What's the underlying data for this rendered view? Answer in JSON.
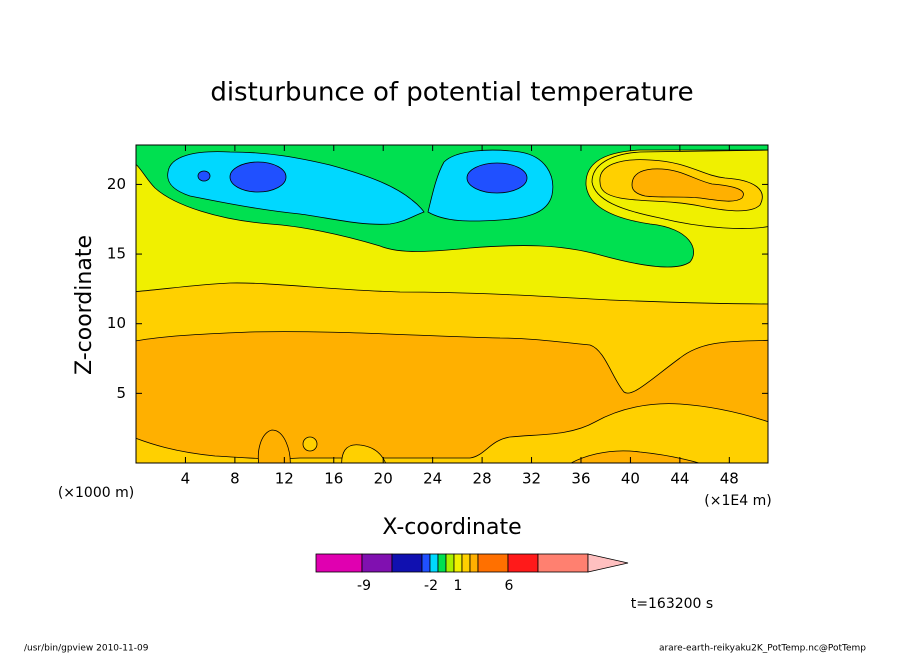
{
  "chart_data": {
    "type": "contour",
    "title": "disturbunce of potential temperature",
    "xlabel": "X-coordinate",
    "ylabel": "Z-coordinate",
    "x_unit": "(×1E4 m)",
    "y_unit": "(×1000 m)",
    "xlim": [
      0,
      51.13
    ],
    "ylim": [
      0,
      22.83
    ],
    "xticks": [
      4,
      8,
      12,
      16,
      20,
      24,
      28,
      32,
      36,
      40,
      44,
      48
    ],
    "yticks": [
      5,
      10,
      15,
      20
    ],
    "colorbar": {
      "colors": [
        "#e000b0",
        "#8010b0",
        "#1010b0",
        "#2050ff",
        "#00d8ff",
        "#00e050",
        "#a8f000",
        "#f0f000",
        "#ffd000",
        "#ffb000",
        "#ff7000",
        "#ff1a1a",
        "#ff8070",
        "#ffc0c0"
      ],
      "ticks": [
        -9,
        -2,
        1,
        6
      ]
    },
    "annotation": "t=163200 s",
    "footer_left": "/usr/bin/gpview   2010-11-09",
    "footer_right": "arare-earth-reikyaku2K_PotTemp.nc@PotTemp"
  }
}
